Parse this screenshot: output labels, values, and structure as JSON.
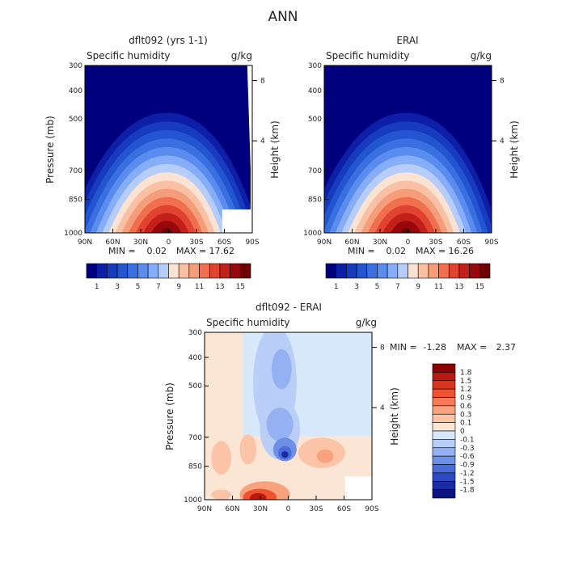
{
  "page": {
    "title": "ANN"
  },
  "chart_data": [
    {
      "type": "heatmap",
      "title": "dflt092 (yrs 1-1)",
      "variable_label": "Specific humidity",
      "units_label": "g/kg",
      "ylabel": "Pressure (mb)",
      "ylabel_right": "Height (km)",
      "x_ticks": [
        "90N",
        "60N",
        "30N",
        "0",
        "30S",
        "60S",
        "90S"
      ],
      "y_ticks": [
        "300",
        "400",
        "500",
        "700",
        "850",
        "1000"
      ],
      "y_right_ticks": [
        "8",
        "4"
      ],
      "stats": {
        "min_label": "MIN =",
        "min": "0.02",
        "max_label": "MAX =",
        "max": "17.62"
      },
      "colorbar": {
        "levels": [
          "1",
          "3",
          "5",
          "7",
          "9",
          "11",
          "13",
          "15"
        ],
        "colors": [
          "#00007f",
          "#0c1fa6",
          "#173bbf",
          "#2255cf",
          "#3a6fe0",
          "#5a8cf0",
          "#86aef8",
          "#b6cdfa",
          "#fbe3d4",
          "#f9c0a3",
          "#f59c78",
          "#f06f4f",
          "#e04330",
          "#c4201a",
          "#96080b",
          "#6e0000"
        ]
      },
      "missing_region": true
    },
    {
      "type": "heatmap",
      "title": "ERAI",
      "variable_label": "Specific humidity",
      "units_label": "g/kg",
      "ylabel": "",
      "ylabel_right": "Height (km)",
      "x_ticks": [
        "90N",
        "60N",
        "30N",
        "0",
        "30S",
        "60S",
        "90S"
      ],
      "y_ticks": [
        "300",
        "400",
        "500",
        "700",
        "850",
        "1000"
      ],
      "y_right_ticks": [
        "8",
        "4"
      ],
      "stats": {
        "min_label": "MIN =",
        "min": "0.02",
        "max_label": "MAX =",
        "max": "16.26"
      },
      "colorbar": {
        "levels": [
          "1",
          "3",
          "5",
          "7",
          "9",
          "11",
          "13",
          "15"
        ],
        "colors": [
          "#00007f",
          "#0c1fa6",
          "#173bbf",
          "#2255cf",
          "#3a6fe0",
          "#5a8cf0",
          "#86aef8",
          "#b6cdfa",
          "#fbe3d4",
          "#f9c0a3",
          "#f59c78",
          "#f06f4f",
          "#e04330",
          "#c4201a",
          "#96080b",
          "#6e0000"
        ]
      },
      "missing_region": false
    },
    {
      "type": "heatmap",
      "title": "dflt092 - ERAI",
      "variable_label": "Specific humidity",
      "units_label": "g/kg",
      "ylabel": "Pressure (mb)",
      "ylabel_right": "Height (km)",
      "x_ticks": [
        "90N",
        "60N",
        "30N",
        "0",
        "30S",
        "60S",
        "90S"
      ],
      "y_ticks": [
        "300",
        "400",
        "500",
        "700",
        "850",
        "1000"
      ],
      "y_right_ticks": [
        "8",
        "4"
      ],
      "stats": {
        "min_label": "MIN =",
        "min": "-1.28",
        "max_label": "MAX =",
        "max": "2.37"
      },
      "colorbar": {
        "levels": [
          "1.8",
          "1.5",
          "1.2",
          "0.9",
          "0.6",
          "0.3",
          "0.1",
          "0",
          "-0.1",
          "-0.3",
          "-0.6",
          "-0.9",
          "-1.2",
          "-1.5",
          "-1.8"
        ],
        "colors": [
          "#8b0000",
          "#b81a10",
          "#d9341c",
          "#ee5230",
          "#f57a55",
          "#f9a27e",
          "#fbc4a6",
          "#fbe6d6",
          "#d8e8fb",
          "#b9cff7",
          "#94b2f1",
          "#6e8fe6",
          "#4a6bd9",
          "#2c48c4",
          "#1a2ba4",
          "#0a157d"
        ]
      },
      "missing_region": true
    }
  ]
}
